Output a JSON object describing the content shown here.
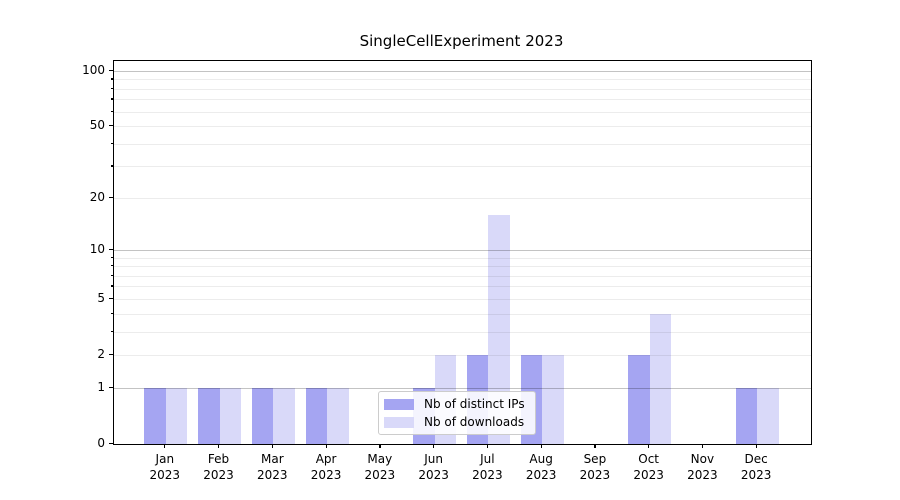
{
  "chart_data": {
    "type": "bar",
    "title": "SingleCellExperiment 2023",
    "categories": [
      "Jan",
      "Feb",
      "Mar",
      "Apr",
      "May",
      "Jun",
      "Jul",
      "Aug",
      "Sep",
      "Oct",
      "Nov",
      "Dec"
    ],
    "x_tick_year": "2023",
    "series": [
      {
        "name": "Nb of distinct IPs",
        "color": "#a5a5f2",
        "values": [
          1,
          1,
          1,
          1,
          0,
          1,
          2,
          2,
          0,
          2,
          0,
          1
        ]
      },
      {
        "name": "Nb of downloads",
        "color": "#d9d9f9",
        "values": [
          1,
          1,
          1,
          1,
          0,
          2,
          16,
          2,
          0,
          4,
          0,
          1
        ]
      }
    ],
    "xlabel": "",
    "ylabel": "",
    "yscale": "log1p",
    "ylim": [
      0,
      114
    ],
    "yticks": [
      {
        "value": 0,
        "label": "0"
      },
      {
        "value": 1,
        "label": "1"
      },
      {
        "value": 2,
        "label": "2"
      },
      {
        "value": 5,
        "label": "5"
      },
      {
        "value": 10,
        "label": "10"
      },
      {
        "value": 20,
        "label": "20"
      },
      {
        "value": 50,
        "label": "50"
      },
      {
        "value": 100,
        "label": "100"
      }
    ],
    "minor_tick_values": [
      3,
      4,
      6,
      7,
      8,
      9,
      30,
      40,
      60,
      70,
      80,
      90
    ],
    "gridline_values": [
      1,
      2,
      3,
      4,
      5,
      6,
      7,
      8,
      9,
      10,
      20,
      30,
      40,
      50,
      60,
      70,
      80,
      90,
      100
    ],
    "major_gridline_values": [
      1,
      10,
      100
    ],
    "grid": true,
    "legend_position": "lower center",
    "colors": {
      "major_gridline": "#c3c3c3",
      "minor_gridline": "#ececec",
      "axis": "#000000",
      "background": "#ffffff"
    }
  }
}
